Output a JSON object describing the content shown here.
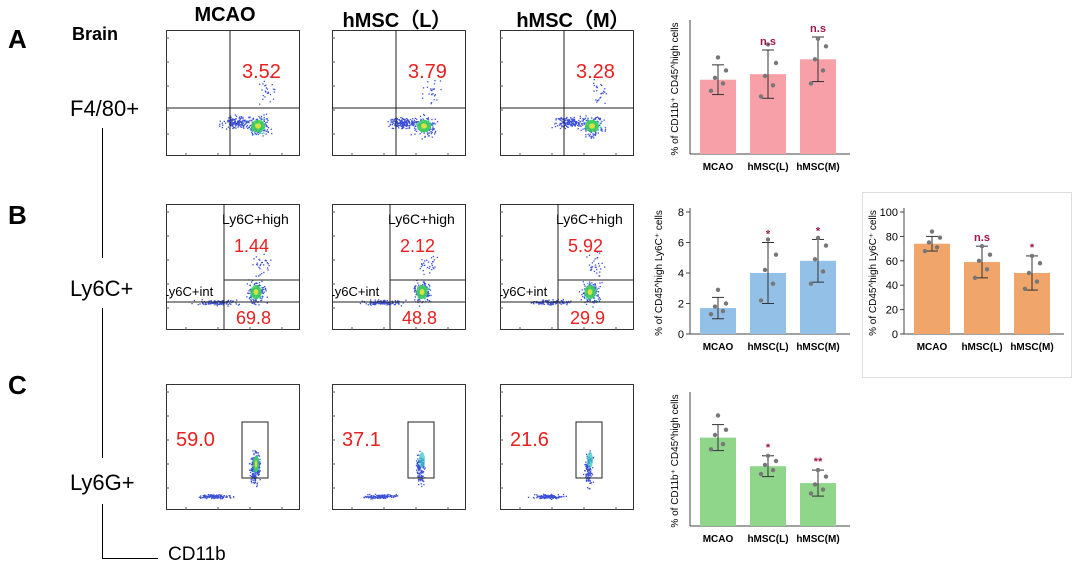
{
  "panels": {
    "a": "A",
    "b": "B",
    "c": "C"
  },
  "brain_label": "Brain",
  "columns": [
    "MCAO",
    "hMSC（L）",
    "hMSC（M）"
  ],
  "rows": {
    "f480": "F4/80+",
    "ly6c": "Ly6C+",
    "ly6g": "Ly6G+"
  },
  "x_axis_label": "CD11b",
  "flow_labels": {
    "ly6c_high": "Ly6C+high",
    "ly6c_int": "Ly6C+int"
  },
  "flow_values": {
    "f480": [
      "3.52",
      "3.79",
      "3.28"
    ],
    "ly6c_high": [
      "1.44",
      "2.12",
      "5.92"
    ],
    "ly6c_int": [
      "69.8",
      "48.8",
      "29.9"
    ],
    "ly6g": [
      "59.0",
      "37.1",
      "21.6"
    ]
  },
  "colors": {
    "red_text": "#e8201f",
    "pink": "#f7a0a8",
    "blue": "#93c0e6",
    "orange": "#f0a56a",
    "green": "#90d68a",
    "sig": "#a0144c"
  },
  "chart_data": [
    {
      "type": "bar",
      "id": "f480",
      "categories": [
        "MCAO",
        "hMSC(L)",
        "hMSC(M)"
      ],
      "values": [
        4.0,
        4.3,
        5.1
      ],
      "errors": [
        0.8,
        1.3,
        1.2
      ],
      "points": [
        [
          3.4,
          3.8,
          4.1,
          4.5,
          5.2
        ],
        [
          3.1,
          3.7,
          4.2,
          4.9,
          5.9
        ],
        [
          3.8,
          4.5,
          5.1,
          5.8,
          6.2
        ]
      ],
      "significance": [
        "",
        "n.s",
        "n.s"
      ],
      "ylabel": "% of CD11b⁺ CD45^high cells",
      "ylim": [
        0,
        7
      ],
      "color": "pink"
    },
    {
      "type": "bar",
      "id": "ly6c_high",
      "categories": [
        "MCAO",
        "hMSC(L)",
        "hMSC(M)"
      ],
      "values": [
        1.7,
        4.0,
        4.8
      ],
      "errors": [
        0.7,
        2.0,
        1.4
      ],
      "points": [
        [
          1.3,
          1.5,
          1.8,
          2.0,
          2.9
        ],
        [
          2.2,
          3.3,
          4.2,
          5.2,
          6.2
        ],
        [
          3.3,
          4.1,
          4.9,
          5.8,
          6.3
        ]
      ],
      "significance": [
        "",
        "*",
        "*"
      ],
      "ylabel": "% of CD45^high Ly6C⁺ cells",
      "yticks": [
        0,
        2,
        4,
        6,
        8
      ],
      "ylim": [
        0,
        8
      ],
      "color": "blue"
    },
    {
      "type": "bar",
      "id": "ly6c_int",
      "categories": [
        "MCAO",
        "hMSC(L)",
        "hMSC(M)"
      ],
      "values": [
        74,
        59,
        50
      ],
      "errors": [
        6,
        13,
        14
      ],
      "points": [
        [
          68,
          71,
          75,
          79,
          84
        ],
        [
          46,
          53,
          60,
          65,
          72
        ],
        [
          37,
          43,
          50,
          58,
          64
        ]
      ],
      "significance": [
        "",
        "n.s",
        "*"
      ],
      "ylabel": "% of CD45^high Ly6C⁺ cells",
      "yticks": [
        0,
        20,
        40,
        60,
        80,
        100
      ],
      "ylim": [
        0,
        100
      ],
      "color": "orange"
    },
    {
      "type": "bar",
      "id": "ly6g",
      "categories": [
        "MCAO",
        "hMSC(L)",
        "hMSC(M)"
      ],
      "values": [
        68,
        46,
        33
      ],
      "errors": [
        10,
        8,
        10
      ],
      "points": [
        [
          59,
          63,
          70,
          74,
          85
        ],
        [
          40,
          43,
          47,
          50,
          54
        ],
        [
          25,
          28,
          32,
          38,
          43
        ]
      ],
      "significance": [
        "",
        "*",
        "**"
      ],
      "ylabel": "% of CD11b⁺ CD45^high cells",
      "ylim": [
        0,
        100
      ],
      "color": "green"
    }
  ]
}
